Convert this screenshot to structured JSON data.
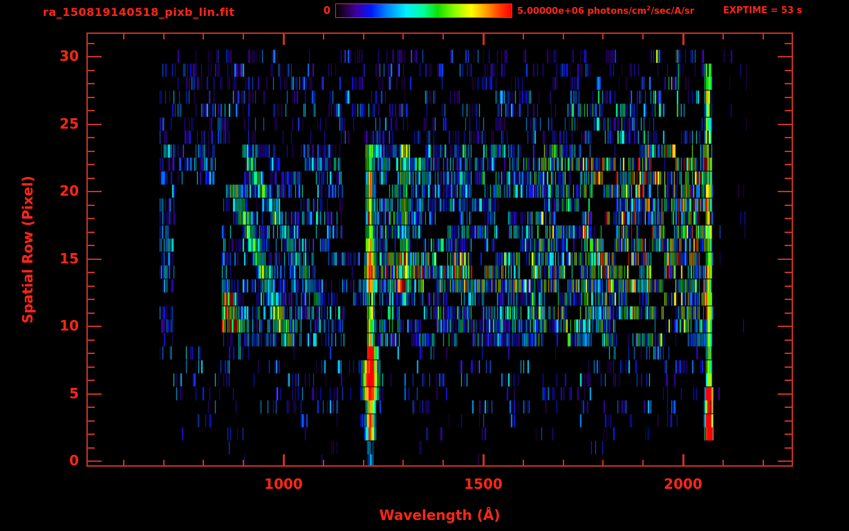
{
  "chart_data": {
    "type": "heatmap",
    "title": "ra_150819140518_pixb_lin.fit",
    "xlabel": "Wavelength (Å)",
    "ylabel": "Spatial Row (Pixel)",
    "exptime_label": "EXPTIME = 53 s",
    "colorbar": {
      "min": 0,
      "max": 5000000,
      "min_label": "0",
      "max_value": "5.00000e+06",
      "unit_pre": " photons/cm",
      "unit_sup": "2",
      "unit_post": "/sec/A/sr"
    },
    "axes": {
      "xlim": [
        507,
        2275
      ],
      "ylim": [
        -0.4,
        31.8
      ],
      "x_major_ticks": [
        1000,
        1500,
        2000
      ],
      "x_major_labels": [
        "1000",
        "1500",
        "2000"
      ],
      "x_minor_range": [
        600,
        2200
      ],
      "x_minor_step": 100,
      "y_major_ticks": [
        0,
        5,
        10,
        15,
        20,
        25,
        30
      ],
      "y_major_labels": [
        "0",
        "5",
        "10",
        "15",
        "20",
        "25",
        "30"
      ],
      "y_minor_range": [
        0,
        31
      ],
      "y_minor_step": 1,
      "grid": false
    },
    "colors": {
      "background": "#000000",
      "text_red": "#ff2616",
      "line_red": "#cc3222",
      "colorbar_border": "#e03221"
    },
    "colormap_stops": [
      [
        0.0,
        "#000000"
      ],
      [
        0.05,
        "#23003c"
      ],
      [
        0.12,
        "#3c00a8"
      ],
      [
        0.2,
        "#0018ff"
      ],
      [
        0.3,
        "#0090ff"
      ],
      [
        0.4,
        "#00f0ff"
      ],
      [
        0.5,
        "#00ff9a"
      ],
      [
        0.58,
        "#10e000"
      ],
      [
        0.68,
        "#90ff00"
      ],
      [
        0.77,
        "#ffff00"
      ],
      [
        0.86,
        "#ff9800"
      ],
      [
        0.94,
        "#ff3500"
      ],
      [
        1.0,
        "#ff0000"
      ]
    ],
    "seed": 42,
    "data_extent_wl": [
      690,
      2160
    ],
    "n_rows": 31,
    "regions": [
      {
        "rows": [
          24,
          30
        ],
        "wl": [
          690,
          2058
        ],
        "level": 0.2,
        "fill": 0.42
      },
      {
        "rows": [
          21,
          23
        ],
        "wl": [
          690,
          2058
        ],
        "level": 0.24,
        "fill": 0.6
      },
      {
        "rows": [
          9,
          20
        ],
        "wl": [
          690,
          1240
        ],
        "level": 0.26,
        "fill": 0.62
      },
      {
        "rows": [
          9,
          23
        ],
        "wl": [
          1240,
          1620
        ],
        "level": 0.3,
        "fill": 0.78
      },
      {
        "rows": [
          9,
          23
        ],
        "wl": [
          1620,
          2058
        ],
        "level": 0.4,
        "fill": 0.8
      },
      {
        "rows": [
          12,
          23
        ],
        "wl": [
          1750,
          2058
        ],
        "level": 0.55,
        "fill": 0.82
      },
      {
        "rows": [
          13,
          15
        ],
        "wl": [
          1240,
          2058
        ],
        "level": 0.58,
        "fill": 0.9
      },
      {
        "rows": [
          13,
          15
        ],
        "wl": [
          1750,
          2058
        ],
        "level": 0.63,
        "fill": 0.92
      },
      {
        "rows": [
          16,
          23
        ],
        "wl": [
          1240,
          1620
        ],
        "level": 0.3,
        "fill": 0.72
      },
      {
        "rows": [
          4,
          8
        ],
        "wl": [
          690,
          2058
        ],
        "level": 0.22,
        "fill": 0.3
      },
      {
        "rows": [
          2,
          3
        ],
        "wl": [
          690,
          2058
        ],
        "level": 0.16,
        "fill": 0.14
      },
      {
        "rows": [
          0,
          1
        ],
        "wl": [
          690,
          2058
        ],
        "level": 0.14,
        "fill": 0.03
      },
      {
        "rows": [
          2,
          30
        ],
        "wl": [
          2076,
          2160
        ],
        "level": 0.16,
        "fill": 0.05
      },
      {
        "rows": [
          10,
          12
        ],
        "wl": [
          800,
          890
        ],
        "level": 0.62,
        "fill": 0.92
      },
      {
        "rows": [
          28,
          30
        ],
        "wl": [
          1925,
          1995
        ],
        "level": 0.5,
        "fill": 0.65
      },
      {
        "rows": [
          24,
          27
        ],
        "wl": [
          1700,
          2058
        ],
        "level": 0.3,
        "fill": 0.55
      }
    ],
    "masks": [
      {
        "rows": [
          9,
          20
        ],
        "wl": [
          728,
          845
        ]
      },
      {
        "rows": [
          21,
          23
        ],
        "wl": [
          830,
          895
        ]
      },
      {
        "rows": [
          16,
          23
        ],
        "wl": [
          1148,
          1204
        ]
      },
      {
        "rows": [
          8,
          11
        ],
        "wl": [
          1152,
          1207
        ]
      }
    ],
    "emission_lines": [
      {
        "wl": 1216,
        "sigma": 8,
        "rows": [
          17,
          23
        ],
        "amp": 0.5
      },
      {
        "wl": 1216,
        "sigma": 8,
        "rows": [
          13,
          16
        ],
        "amp": 0.8
      },
      {
        "wl": 1216,
        "sigma": 8,
        "rows": [
          9,
          12
        ],
        "amp": 0.55
      },
      {
        "wl": 1216,
        "sigma": 12,
        "rows": [
          5,
          8
        ],
        "amp": 1.0
      },
      {
        "wl": 1216,
        "sigma": 9,
        "rows": [
          2,
          4
        ],
        "amp": 0.7
      },
      {
        "wl": 1216,
        "sigma": 5,
        "rows": [
          0,
          1
        ],
        "amp": 0.35
      },
      {
        "wl": 1302,
        "sigma": 8,
        "rows": [
          12,
          23
        ],
        "amp": 0.33
      },
      {
        "wl": 2064,
        "sigma": 5,
        "rows": [
          2,
          23
        ],
        "amp": 0.85
      },
      {
        "wl": 2064,
        "sigma": 6,
        "rows": [
          2,
          5
        ],
        "amp": 1.0
      },
      {
        "wl": 2062,
        "sigma": 6,
        "rows": [
          24,
          29
        ],
        "amp": 0.7
      },
      {
        "wl": 2070,
        "sigma": 3,
        "rows": [
          0,
          2
        ],
        "amp": 0.08
      }
    ],
    "streaks": [
      {
        "wl1": 855,
        "r1": 22,
        "wl2": 1010,
        "r2": 9,
        "amp": 0.38,
        "w": 12
      },
      {
        "wl1": 900,
        "r1": 23,
        "wl2": 1085,
        "r2": 12,
        "amp": 0.3,
        "w": 9
      },
      {
        "wl1": 812,
        "r1": 15,
        "wl2": 880,
        "r2": 10,
        "amp": 0.4,
        "w": 14
      }
    ],
    "dropouts": {
      "rows_24_30": 0.4,
      "rows_9_23": 0.22,
      "rows_4_8": 0.5,
      "rows_0_3": 0.6,
      "block_wl": 30
    }
  }
}
